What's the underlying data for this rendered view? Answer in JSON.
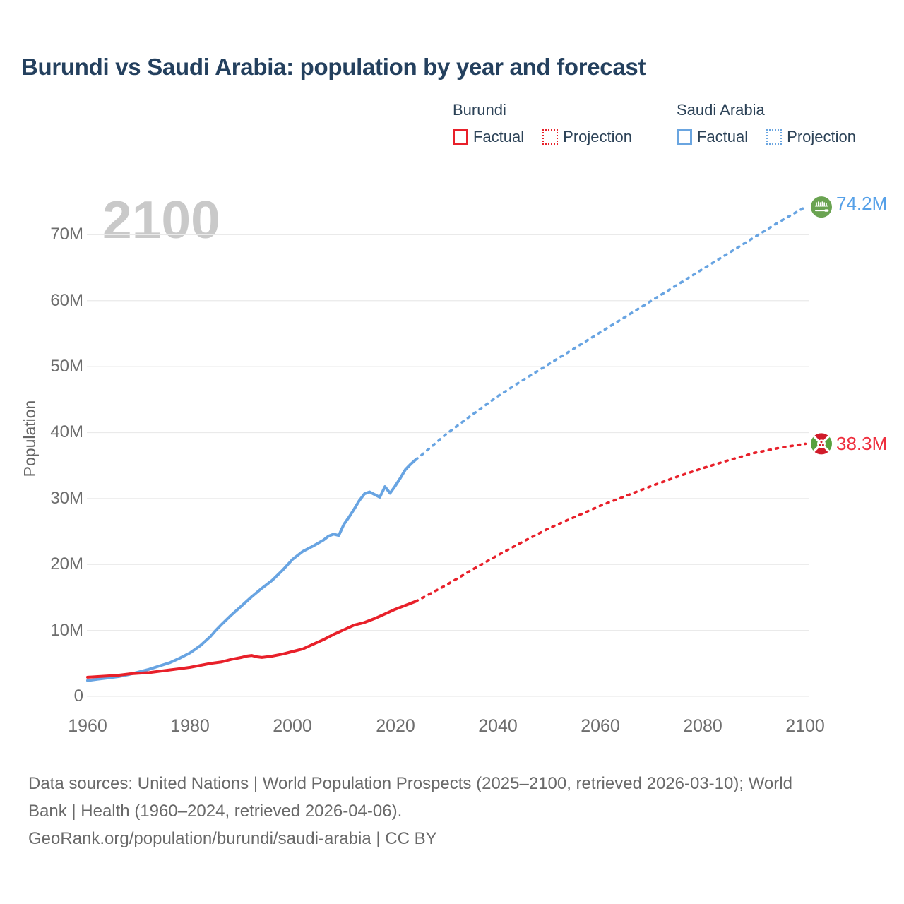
{
  "header": {
    "title": "Burundi vs Saudi Arabia: population by year and forecast"
  },
  "watermark": "2100",
  "legend": {
    "groups": [
      {
        "name": "Burundi",
        "factual_label": "Factual",
        "projection_label": "Projection",
        "color": "#e8202a"
      },
      {
        "name": "Saudi Arabia",
        "factual_label": "Factual",
        "projection_label": "Projection",
        "color": "#6aa5e0"
      }
    ]
  },
  "end_markers": [
    {
      "series": "Saudi Arabia",
      "flag": "saudi-arabia-flag",
      "value": 74.2,
      "label": "74.2M",
      "color": "#55a0e8"
    },
    {
      "series": "Burundi",
      "flag": "burundi-flag",
      "value": 38.3,
      "label": "38.3M",
      "color": "#ee2f3e"
    }
  ],
  "chart_data": {
    "type": "line",
    "title": "Burundi vs Saudi Arabia: population by year and forecast",
    "xlabel": "",
    "ylabel": "Population",
    "units": "millions of people",
    "x_range": [
      1960,
      2100
    ],
    "y_range_millions": [
      0,
      75
    ],
    "grid": "horizontal-only",
    "legend_position": "top-right",
    "xticks": [
      "1960",
      "1980",
      "2000",
      "2020",
      "2040",
      "2060",
      "2080",
      "2100"
    ],
    "yticks": [
      {
        "value": 70,
        "label": "70M"
      },
      {
        "value": 60,
        "label": "60M"
      },
      {
        "value": 50,
        "label": "50M"
      },
      {
        "value": 40,
        "label": "40M"
      },
      {
        "value": 30,
        "label": "30M"
      },
      {
        "value": 20,
        "label": "20M"
      },
      {
        "value": 10,
        "label": "10M"
      },
      {
        "value": 0,
        "label": "0"
      }
    ],
    "series": [
      {
        "name": "Saudi Arabia Factual",
        "style": "solid",
        "color": "#68a4e2",
        "points": [
          [
            1960,
            2.4
          ],
          [
            1962,
            2.6
          ],
          [
            1964,
            2.8
          ],
          [
            1966,
            3.0
          ],
          [
            1968,
            3.3
          ],
          [
            1970,
            3.7
          ],
          [
            1972,
            4.1
          ],
          [
            1974,
            4.6
          ],
          [
            1976,
            5.1
          ],
          [
            1978,
            5.8
          ],
          [
            1980,
            6.6
          ],
          [
            1982,
            7.7
          ],
          [
            1984,
            9.1
          ],
          [
            1985,
            10.0
          ],
          [
            1986,
            10.8
          ],
          [
            1988,
            12.3
          ],
          [
            1990,
            13.7
          ],
          [
            1992,
            15.1
          ],
          [
            1994,
            16.4
          ],
          [
            1996,
            17.6
          ],
          [
            1998,
            19.1
          ],
          [
            2000,
            20.8
          ],
          [
            2002,
            22.0
          ],
          [
            2004,
            22.8
          ],
          [
            2006,
            23.7
          ],
          [
            2007,
            24.3
          ],
          [
            2008,
            24.6
          ],
          [
            2009,
            24.4
          ],
          [
            2010,
            26.1
          ],
          [
            2011,
            27.2
          ],
          [
            2012,
            28.4
          ],
          [
            2013,
            29.7
          ],
          [
            2014,
            30.7
          ],
          [
            2015,
            31.0
          ],
          [
            2016,
            30.6
          ],
          [
            2017,
            30.2
          ],
          [
            2018,
            31.8
          ],
          [
            2019,
            30.8
          ],
          [
            2020,
            31.9
          ],
          [
            2021,
            33.1
          ],
          [
            2022,
            34.4
          ],
          [
            2023,
            35.2
          ],
          [
            2024,
            35.9
          ]
        ]
      },
      {
        "name": "Saudi Arabia Projection",
        "style": "dotted",
        "color": "#68a4e2",
        "points": [
          [
            2024,
            35.9
          ],
          [
            2025,
            36.5
          ],
          [
            2030,
            39.8
          ],
          [
            2035,
            42.7
          ],
          [
            2040,
            45.5
          ],
          [
            2045,
            48.0
          ],
          [
            2050,
            50.4
          ],
          [
            2055,
            52.8
          ],
          [
            2060,
            55.2
          ],
          [
            2065,
            57.6
          ],
          [
            2070,
            60.0
          ],
          [
            2075,
            62.4
          ],
          [
            2080,
            64.8
          ],
          [
            2085,
            67.2
          ],
          [
            2090,
            69.6
          ],
          [
            2095,
            72.0
          ],
          [
            2100,
            74.2
          ]
        ]
      },
      {
        "name": "Burundi Factual",
        "style": "solid",
        "color": "#e8202a",
        "points": [
          [
            1960,
            2.9
          ],
          [
            1962,
            3.0
          ],
          [
            1964,
            3.1
          ],
          [
            1966,
            3.2
          ],
          [
            1968,
            3.4
          ],
          [
            1970,
            3.5
          ],
          [
            1972,
            3.6
          ],
          [
            1974,
            3.8
          ],
          [
            1976,
            4.0
          ],
          [
            1978,
            4.2
          ],
          [
            1980,
            4.4
          ],
          [
            1982,
            4.7
          ],
          [
            1984,
            5.0
          ],
          [
            1986,
            5.2
          ],
          [
            1988,
            5.6
          ],
          [
            1990,
            5.9
          ],
          [
            1991,
            6.1
          ],
          [
            1992,
            6.2
          ],
          [
            1993,
            6.0
          ],
          [
            1994,
            5.9
          ],
          [
            1995,
            6.0
          ],
          [
            1996,
            6.1
          ],
          [
            1998,
            6.4
          ],
          [
            2000,
            6.8
          ],
          [
            2002,
            7.2
          ],
          [
            2004,
            7.9
          ],
          [
            2006,
            8.6
          ],
          [
            2008,
            9.4
          ],
          [
            2010,
            10.1
          ],
          [
            2012,
            10.8
          ],
          [
            2014,
            11.2
          ],
          [
            2016,
            11.8
          ],
          [
            2018,
            12.5
          ],
          [
            2020,
            13.2
          ],
          [
            2022,
            13.8
          ],
          [
            2024,
            14.4
          ]
        ]
      },
      {
        "name": "Burundi Projection",
        "style": "dotted",
        "color": "#e8202a",
        "points": [
          [
            2024,
            14.4
          ],
          [
            2025,
            14.8
          ],
          [
            2030,
            16.9
          ],
          [
            2035,
            19.2
          ],
          [
            2040,
            21.4
          ],
          [
            2045,
            23.5
          ],
          [
            2050,
            25.5
          ],
          [
            2055,
            27.2
          ],
          [
            2060,
            28.9
          ],
          [
            2065,
            30.4
          ],
          [
            2070,
            31.9
          ],
          [
            2075,
            33.3
          ],
          [
            2080,
            34.6
          ],
          [
            2085,
            35.8
          ],
          [
            2090,
            36.9
          ],
          [
            2095,
            37.7
          ],
          [
            2100,
            38.3
          ]
        ]
      }
    ]
  },
  "footer": {
    "lines": [
      "Data sources: United Nations | World Population Prospects (2025–2100, retrieved 2026-03-10); World",
      "Bank | Health (1960–2024, retrieved 2026-04-06).",
      "GeoRank.org/population/burundi/saudi-arabia | CC BY"
    ]
  }
}
